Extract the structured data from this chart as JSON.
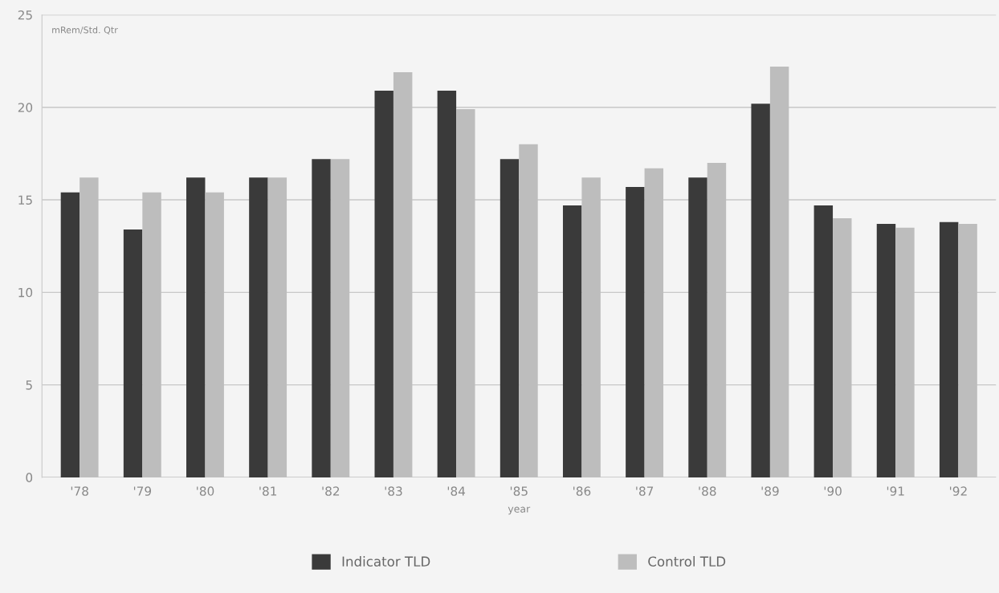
{
  "chart_data": {
    "type": "bar",
    "ylabel": "mRem/Std. Qtr",
    "xlabel": "year",
    "categories": [
      "'78",
      "'79",
      "'80",
      "'81",
      "'82",
      "'83",
      "'84",
      "'85",
      "'86",
      "'87",
      "'88",
      "'89",
      "'90",
      "'91",
      "'92"
    ],
    "series": [
      {
        "name": "Indicator TLD",
        "color": "#3a3a3a",
        "values": [
          15.4,
          13.4,
          16.2,
          16.2,
          17.2,
          20.9,
          20.9,
          17.2,
          14.7,
          15.7,
          16.2,
          20.2,
          14.7,
          13.7,
          13.8
        ]
      },
      {
        "name": "Control TLD",
        "color": "#bdbdbd",
        "values": [
          16.2,
          15.4,
          15.4,
          16.2,
          17.2,
          21.9,
          19.9,
          18.0,
          16.2,
          16.7,
          17.0,
          22.2,
          14.0,
          13.5,
          13.7
        ]
      }
    ],
    "ylim": [
      0,
      25
    ],
    "yticks": [
      0,
      5,
      10,
      15,
      20,
      25
    ],
    "grid": "y",
    "legend": "bottom"
  }
}
